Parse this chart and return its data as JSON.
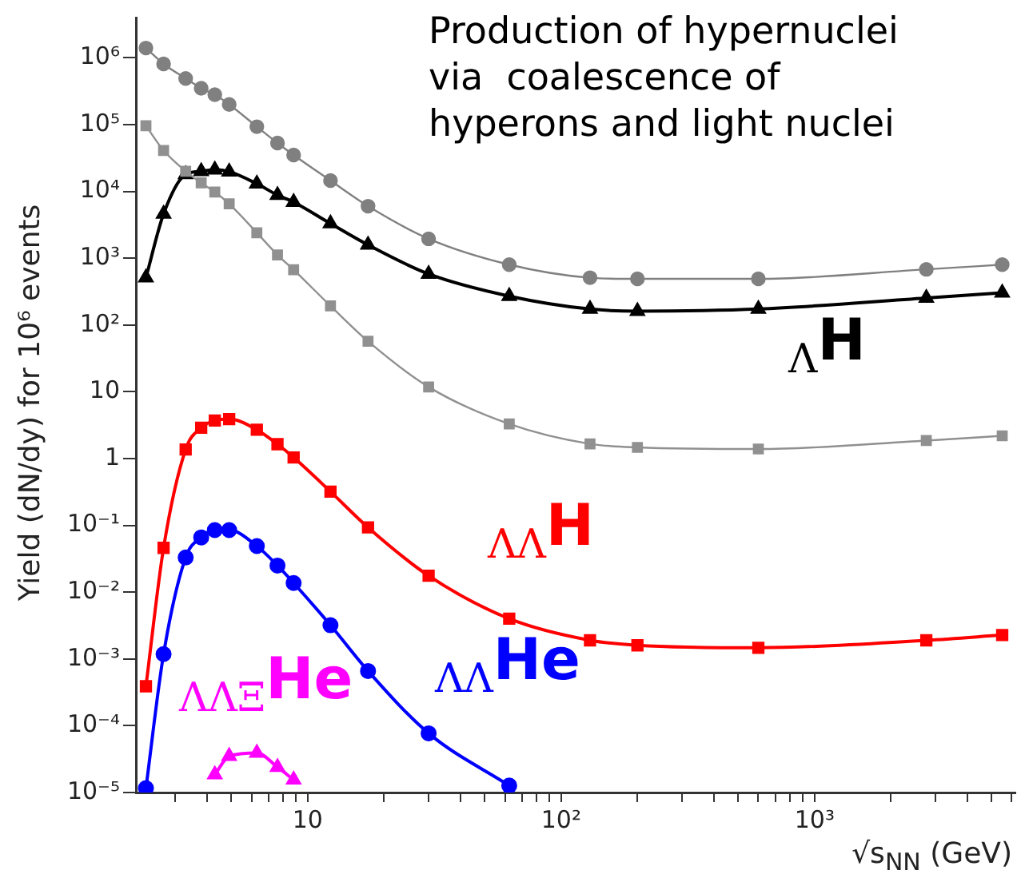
{
  "chart_data": {
    "type": "line",
    "title": "Production of hypernuclei\nvia  coalescence of\nhyperons and light nuclei",
    "xlabel": "√s$_{NN}$ (GeV)",
    "ylabel": "Yield (dN/dy) for 10⁶ events",
    "x": [
      2.3,
      2.7,
      3.3,
      3.8,
      4.3,
      4.9,
      6.3,
      7.6,
      8.8,
      12.3,
      17.3,
      30,
      62.4,
      130,
      200,
      600,
      2760,
      5500
    ],
    "series": [
      {
        "color": "#808080",
        "marker": "circle",
        "values": [
          1400000,
          810000,
          490000,
          350000,
          280000,
          200000,
          93000,
          53000,
          35000,
          14500,
          6000,
          1950,
          800,
          510,
          490,
          490,
          680,
          800
        ]
      },
      {
        "name": "$_{Λ}$H",
        "color": "#000000",
        "marker": "triangle",
        "values": [
          510,
          4600,
          18000,
          20000,
          21000,
          19700,
          13000,
          8800,
          6900,
          3300,
          1580,
          580,
          270,
          173,
          161,
          173,
          254,
          304
        ]
      },
      {
        "color": "#909090",
        "marker": "square",
        "values": [
          96000,
          41000,
          20000,
          13400,
          9800,
          6500,
          2400,
          1120,
          670,
          193,
          57,
          11.8,
          3.3,
          1.66,
          1.47,
          1.39,
          1.86,
          2.19
        ]
      },
      {
        "name": "$_{ΛΛ}$H",
        "color": "#ff0000",
        "marker": "square",
        "values": [
          0.00039,
          0.046,
          1.37,
          2.9,
          3.7,
          3.9,
          2.7,
          1.64,
          1.04,
          0.32,
          0.093,
          0.0176,
          0.004,
          0.0019,
          0.0016,
          0.00147,
          0.0019,
          0.00228
        ]
      },
      {
        "name": "$_{ΛΛ}$He",
        "color": "#0000ff",
        "marker": "circle",
        "values": [
          1.16e-05,
          0.00118,
          0.033,
          0.066,
          0.085,
          0.085,
          0.049,
          0.025,
          0.0137,
          0.0032,
          0.00066,
          7.7e-05,
          1.27e-05,
          null,
          null,
          null,
          null,
          null
        ]
      },
      {
        "name": "$_{ΛΛΞ}$He",
        "color": "#ff00ff",
        "marker": "triangle",
        "values": [
          null,
          null,
          null,
          null,
          1.86e-05,
          3.5e-05,
          3.9e-05,
          2.4e-05,
          1.55e-05,
          null,
          null,
          null,
          null,
          null,
          null,
          null,
          null,
          null
        ]
      }
    ],
    "log": "xy",
    "grid": false,
    "legend": false,
    "xlim": [
      2.1,
      6200
    ],
    "xticks": [
      {
        "value": 3,
        "label": null
      },
      {
        "value": 4,
        "label": null
      },
      {
        "value": 5,
        "label": null
      },
      {
        "value": 6,
        "label": null
      },
      {
        "value": 7,
        "label": null
      },
      {
        "value": 8,
        "label": null
      },
      {
        "value": 9,
        "label": null
      },
      10,
      {
        "value": 20,
        "label": null
      },
      {
        "value": 30,
        "label": null
      },
      {
        "value": 40,
        "label": null
      },
      {
        "value": 50,
        "label": null
      },
      {
        "value": 60,
        "label": null
      },
      {
        "value": 70,
        "label": null
      },
      {
        "value": 80,
        "label": null
      },
      {
        "value": 90,
        "label": null
      },
      {
        "value": 100,
        "label": "10²"
      },
      {
        "value": 200,
        "label": null
      },
      {
        "value": 300,
        "label": null
      },
      {
        "value": 400,
        "label": null
      },
      {
        "value": 500,
        "label": null
      },
      {
        "value": 600,
        "label": null
      },
      {
        "value": 700,
        "label": null
      },
      {
        "value": 800,
        "label": null
      },
      {
        "value": 900,
        "label": null
      },
      {
        "value": 1000,
        "label": "10³"
      },
      {
        "value": 2000,
        "label": null
      },
      {
        "value": 3000,
        "label": null
      },
      {
        "value": 4000,
        "label": null
      },
      {
        "value": 5000,
        "label": null
      },
      {
        "value": 6000,
        "label": null
      }
    ],
    "ylim": [
      1e-05,
      4000000
    ],
    "yticks": [
      {
        "value": 1e-05,
        "label": "10⁻⁵"
      },
      {
        "value": 0.0001,
        "label": "10⁻⁴"
      },
      {
        "value": 0.001,
        "label": "10⁻³"
      },
      {
        "value": 0.01,
        "label": "10⁻²"
      },
      {
        "value": 0.1,
        "label": "10⁻¹"
      },
      1,
      10,
      {
        "value": 100,
        "label": "10²"
      },
      {
        "value": 1000,
        "label": "10³"
      },
      {
        "value": 10000,
        "label": "10⁴"
      },
      {
        "value": 100000,
        "label": "10⁵"
      },
      {
        "value": 1000000,
        "label": "10⁶"
      }
    ]
  }
}
